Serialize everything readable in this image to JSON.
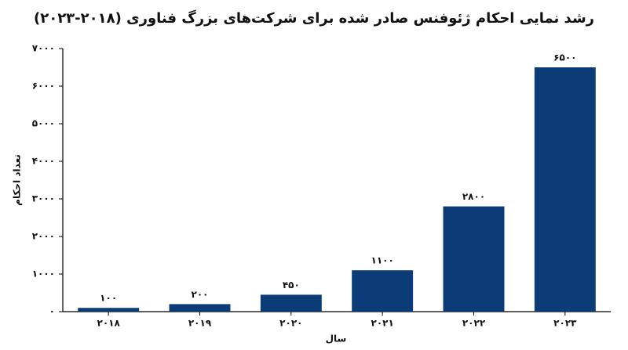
{
  "chart_data": {
    "type": "bar",
    "title": "رشد نمایی احکام ژئوفنس صادر شده برای شرکت‌های بزرگ فناوری (۲۰۱۸-۲۰۲۳)",
    "x_label": "سال",
    "y_label": "تعداد احکام",
    "categories": [
      "۲۰۱۸",
      "۲۰۱۹",
      "۲۰۲۰",
      "۲۰۲۱",
      "۲۰۲۲",
      "۲۰۲۳"
    ],
    "values": [
      100,
      200,
      450,
      1100,
      2800,
      6500
    ],
    "value_labels": [
      "۱۰۰",
      "۲۰۰",
      "۴۵۰",
      "۱۱۰۰",
      "۲۸۰۰",
      "۶۵۰۰"
    ],
    "color": "#0b3c78",
    "ylim": [
      0,
      7000
    ],
    "yticks": [
      {
        "value": 0,
        "label": "۰"
      },
      {
        "value": 1000,
        "label": "۱۰۰۰"
      },
      {
        "value": 2000,
        "label": "۲۰۰۰"
      },
      {
        "value": 3000,
        "label": "۳۰۰۰"
      },
      {
        "value": 4000,
        "label": "۴۰۰۰"
      },
      {
        "value": 5000,
        "label": "۵۰۰۰"
      },
      {
        "value": 6000,
        "label": "۶۰۰۰"
      },
      {
        "value": 7000,
        "label": "۷۰۰۰"
      }
    ],
    "grid": false
  }
}
